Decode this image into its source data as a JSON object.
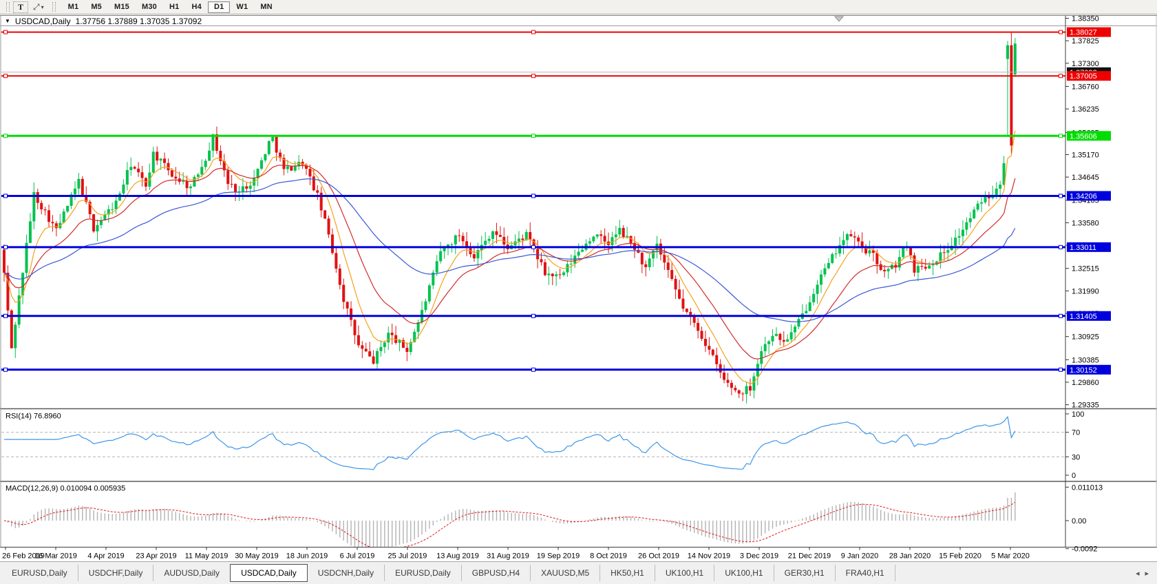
{
  "toolbar": {
    "text_tool": "T",
    "arrange_icon": "tile-windows",
    "timeframes": [
      "M1",
      "M5",
      "M15",
      "M30",
      "H1",
      "H4",
      "D1",
      "W1",
      "MN"
    ],
    "active_timeframe": "D1"
  },
  "chart": {
    "title_symbol": "USDCAD,Daily",
    "title_ohlc": "1.37756 1.37889 1.37035 1.37092"
  },
  "rsi": {
    "label": "RSI(14) 76.8960"
  },
  "macd": {
    "label": "MACD(12,26,9) 0.010094 0.005935"
  },
  "tabs": {
    "items": [
      "EURUSD,Daily",
      "USDCHF,Daily",
      "AUDUSD,Daily",
      "USDCAD,Daily",
      "USDCNH,Daily",
      "EURUSD,Daily",
      "GBPUSD,H4",
      "XAUUSD,M5",
      "HK50,H1",
      "UK100,H1",
      "UK100,H1",
      "GER30,H1",
      "FRA40,H1"
    ],
    "active_index": 3,
    "scroll_left": "◂",
    "scroll_right": "▸"
  },
  "chart_data": {
    "type": "candlestick",
    "symbol": "USDCAD",
    "timeframe": "Daily",
    "current_bar": {
      "open": 1.37756,
      "high": 1.37889,
      "low": 1.37035,
      "close": 1.37092
    },
    "current_price_marker": 1.37092,
    "price_axis_ticks": [
      "1.38350",
      "1.37825",
      "1.37300",
      "1.36760",
      "1.36235",
      "1.35685",
      "1.35170",
      "1.34645",
      "1.34105",
      "1.33580",
      "1.33055",
      "1.32515",
      "1.31990",
      "1.31465",
      "1.30925",
      "1.30385",
      "1.29860",
      "1.29335"
    ],
    "horizontal_lines": [
      {
        "price": 1.38027,
        "color": "#ee0000",
        "kind": "resistance"
      },
      {
        "price": 1.37005,
        "color": "#ee0000",
        "kind": "resistance"
      },
      {
        "price": 1.35606,
        "color": "#00dd00",
        "kind": "resistance"
      },
      {
        "price": 1.34206,
        "color": "#0000dd",
        "kind": "support"
      },
      {
        "price": 1.33011,
        "color": "#0000dd",
        "kind": "support"
      },
      {
        "price": 1.31405,
        "color": "#0000dd",
        "kind": "support"
      },
      {
        "price": 1.30152,
        "color": "#0000dd",
        "kind": "support"
      }
    ],
    "date_ticks": [
      "26 Feb 2019",
      "16 Mar 2019",
      "4 Apr 2019",
      "23 Apr 2019",
      "11 May 2019",
      "30 May 2019",
      "18 Jun 2019",
      "6 Jul 2019",
      "25 Jul 2019",
      "13 Aug 2019",
      "31 Aug 2019",
      "19 Sep 2019",
      "8 Oct 2019",
      "26 Oct 2019",
      "14 Nov 2019",
      "3 Dec 2019",
      "21 Dec 2019",
      "9 Jan 2020",
      "28 Jan 2020",
      "15 Feb 2020",
      "5 Mar 2020"
    ],
    "bar_count": 272,
    "close_waypoints": [
      [
        0,
        1.324
      ],
      [
        1,
        1.315
      ],
      [
        2,
        1.3065
      ],
      [
        8,
        1.3425
      ],
      [
        14,
        1.334
      ],
      [
        20,
        1.3455
      ],
      [
        24,
        1.3345
      ],
      [
        30,
        1.3405
      ],
      [
        34,
        1.3495
      ],
      [
        38,
        1.3445
      ],
      [
        40,
        1.352
      ],
      [
        45,
        1.347
      ],
      [
        50,
        1.344
      ],
      [
        54,
        1.351
      ],
      [
        56,
        1.3558
      ],
      [
        60,
        1.345
      ],
      [
        63,
        1.343
      ],
      [
        67,
        1.346
      ],
      [
        71,
        1.3545
      ],
      [
        72,
        1.3555
      ],
      [
        75,
        1.348
      ],
      [
        80,
        1.35
      ],
      [
        84,
        1.342
      ],
      [
        87,
        1.333
      ],
      [
        91,
        1.318
      ],
      [
        95,
        1.307
      ],
      [
        99,
        1.3035
      ],
      [
        103,
        1.31
      ],
      [
        108,
        1.306
      ],
      [
        112,
        1.315
      ],
      [
        117,
        1.329
      ],
      [
        122,
        1.333
      ],
      [
        126,
        1.328
      ],
      [
        131,
        1.334
      ],
      [
        135,
        1.33
      ],
      [
        140,
        1.333
      ],
      [
        145,
        1.324
      ],
      [
        149,
        1.323
      ],
      [
        154,
        1.329
      ],
      [
        158,
        1.333
      ],
      [
        162,
        1.331
      ],
      [
        165,
        1.334
      ],
      [
        169,
        1.33
      ],
      [
        172,
        1.325
      ],
      [
        175,
        1.3305
      ],
      [
        178,
        1.324
      ],
      [
        182,
        1.316
      ],
      [
        186,
        1.311
      ],
      [
        189,
        1.306
      ],
      [
        193,
        1.299
      ],
      [
        197,
        1.296
      ],
      [
        200,
        1.2975
      ],
      [
        203,
        1.306
      ],
      [
        206,
        1.31
      ],
      [
        209,
        1.308
      ],
      [
        212,
        1.311
      ],
      [
        215,
        1.316
      ],
      [
        218,
        1.322
      ],
      [
        221,
        1.326
      ],
      [
        224,
        1.331
      ],
      [
        227,
        1.333
      ],
      [
        230,
        1.33
      ],
      [
        233,
        1.328
      ],
      [
        236,
        1.324
      ],
      [
        239,
        1.326
      ],
      [
        242,
        1.331
      ],
      [
        244,
        1.325
      ],
      [
        248,
        1.326
      ],
      [
        252,
        1.329
      ],
      [
        256,
        1.333
      ],
      [
        259,
        1.337
      ],
      [
        262,
        1.341
      ],
      [
        265,
        1.343
      ],
      [
        267,
        1.3455
      ],
      [
        268,
        1.3505
      ]
    ],
    "final_candles": [
      {
        "o": 1.374,
        "h": 1.3782,
        "l": 1.356,
        "c": 1.3772
      },
      {
        "o": 1.3772,
        "h": 1.3803,
        "l": 1.3518,
        "c": 1.3538
      },
      {
        "o": 1.3704,
        "h": 1.3789,
        "l": 1.3698,
        "c": 1.3776
      }
    ],
    "up_color": "#00c24e",
    "down_color": "#e01212",
    "moving_averages": [
      {
        "period": 8,
        "color": "#f6a11a",
        "name": "ma-fast"
      },
      {
        "period": 20,
        "color": "#d42a2a",
        "name": "ma-medium"
      },
      {
        "period": 55,
        "color": "#3a57d7",
        "name": "ma-slow"
      }
    ],
    "rsi": {
      "period": 14,
      "value": 76.896,
      "levels": [
        100,
        70,
        30,
        0
      ],
      "color": "#3d96e8"
    },
    "macd": {
      "fast": 12,
      "slow": 26,
      "signal": 9,
      "value": 0.010094,
      "signal_value": 0.005935,
      "axis_labels": [
        "0.011013",
        "0.00",
        "-0.0092"
      ],
      "bar_color": "#b2b2b2",
      "signal_color": "#e01a1a"
    }
  }
}
